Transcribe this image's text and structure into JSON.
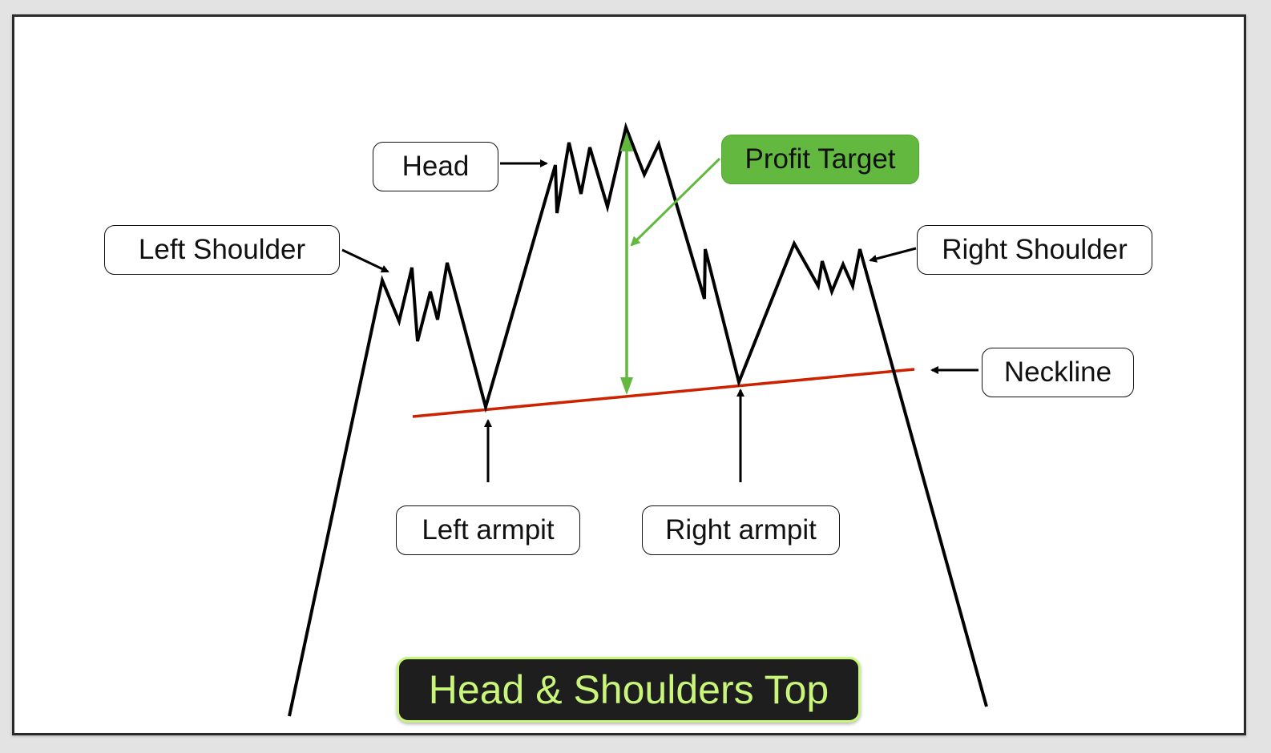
{
  "title": "Head & Shoulders Top",
  "labels": {
    "head": "Head",
    "left_shoulder": "Left Shoulder",
    "right_shoulder": "Right Shoulder",
    "neckline": "Neckline",
    "left_armpit": "Left armpit",
    "right_armpit": "Right armpit",
    "profit_target": "Profit Target"
  },
  "colors": {
    "price_line": "#000000",
    "neckline": "#cc2200",
    "profit_target": "#63b840",
    "title_text": "#c8f57a",
    "title_background": "#1e1e1e"
  }
}
